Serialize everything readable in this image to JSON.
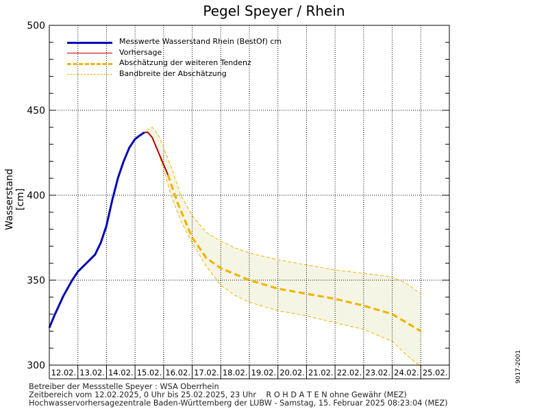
{
  "title": "Pegel Speyer / Rhein",
  "footer": {
    "line1": "Betreiber der Messstelle Speyer : WSA Oberrhein",
    "line2": "Zeitbereich vom 12.02.2025, 0 Uhr bis 25.02.2025, 23 Uhr    R O H D A T E N ohne Gewähr (MEZ)",
    "line3": "Hochwasservorhersagezentrale Baden-Württemberg der LUBW - Samstag, 15. Februar 2025 08:23:04 (MEZ)",
    "side_code": "9017-2001"
  },
  "colors": {
    "measured": "#0000b4",
    "forecast": "#b40000",
    "tendency": "#f0b400",
    "band_fill": "#f5f5e6",
    "band_line": "#f0b400"
  },
  "chart_data": {
    "type": "line",
    "title": "Pegel Speyer / Rhein",
    "ylabel": "Wasserstand [cm]",
    "xlabel": "",
    "ylim": [
      300,
      500
    ],
    "yticks": [
      300,
      350,
      400,
      450,
      500
    ],
    "xlim": [
      0,
      14
    ],
    "x_unit": "days since 12.02.2025 00:00",
    "x_tick_labels": [
      "12.02.",
      "13.02.",
      "14.02.",
      "15.02.",
      "16.02.",
      "17.02.",
      "18.02.",
      "19.02.",
      "20.02.",
      "21.02.",
      "22.02.",
      "23.02.",
      "24.02.",
      "25.02."
    ],
    "grid": true,
    "legend": {
      "placement": "top-left",
      "entries": [
        "Messwerte Wasserstand Rhein (BestOf)  cm",
        "Vorhersage",
        "Abschätzung der weiteren Tendenz",
        "Bandbreite der Abschätzung"
      ]
    },
    "series": [
      {
        "name": "Messwerte Wasserstand Rhein (BestOf)  cm",
        "style": "solid-thick",
        "x": [
          0,
          0.2,
          0.5,
          0.8,
          1.0,
          1.3,
          1.6,
          1.8,
          2.0,
          2.2,
          2.4,
          2.6,
          2.8,
          3.0,
          3.15,
          3.33
        ],
        "y": [
          322,
          330,
          341,
          350,
          355,
          360,
          365,
          372,
          382,
          397,
          410,
          420,
          428,
          433,
          435,
          437
        ]
      },
      {
        "name": "Vorhersage",
        "style": "solid",
        "x": [
          3.33,
          3.45,
          3.6,
          3.75,
          3.9,
          4.05,
          4.15
        ],
        "y": [
          437,
          437,
          434,
          428,
          422,
          416,
          412
        ]
      },
      {
        "name": "Abschätzung der weiteren Tendenz",
        "style": "dashed-thick",
        "x": [
          4.15,
          4.5,
          5.0,
          5.5,
          6.0,
          7.0,
          8.0,
          9.0,
          10.0,
          11.0,
          12.0,
          13.0
        ],
        "y": [
          412,
          395,
          375,
          363,
          357,
          350,
          345,
          342,
          339,
          335,
          330,
          320
        ]
      },
      {
        "name": "Bandbreite der Abschätzung (oben)",
        "style": "dashed-thin",
        "x": [
          3.4,
          3.6,
          3.8,
          4.0,
          4.3,
          4.6,
          5.0,
          5.5,
          6.0,
          6.5,
          7.0,
          8.0,
          9.0,
          10.0,
          11.0,
          12.0,
          12.5,
          13.0
        ],
        "y": [
          438,
          440,
          436,
          428,
          415,
          400,
          388,
          378,
          373,
          369,
          366,
          362,
          359,
          356,
          354,
          352,
          348,
          342
        ]
      },
      {
        "name": "Bandbreite der Abschätzung (unten)",
        "style": "dashed-thin",
        "x": [
          3.6,
          3.8,
          4.0,
          4.3,
          4.6,
          5.0,
          5.5,
          6.0,
          6.5,
          7.0,
          8.0,
          9.0,
          10.0,
          11.0,
          12.0,
          12.5,
          13.0
        ],
        "y": [
          434,
          426,
          415,
          398,
          385,
          372,
          358,
          347,
          341,
          337,
          332,
          329,
          325,
          321,
          314,
          306,
          299
        ]
      }
    ]
  }
}
